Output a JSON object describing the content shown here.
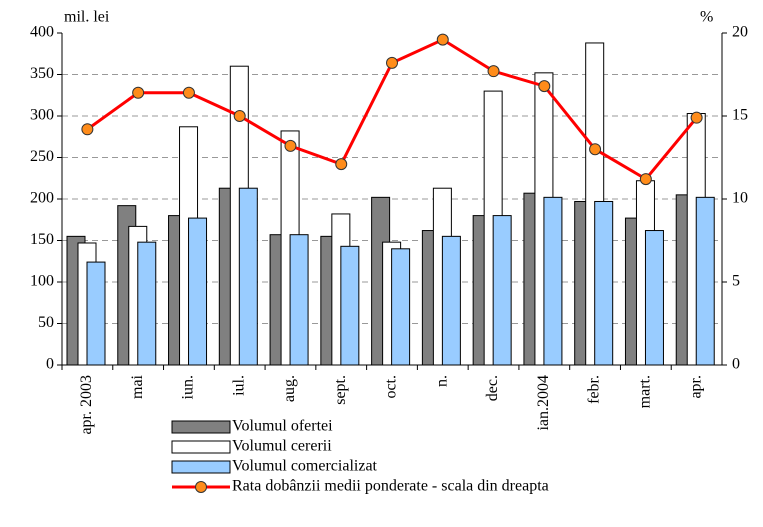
{
  "chart_data": {
    "type": "bar_line",
    "y_label": "mil. lei",
    "y2_label": "%",
    "categories": [
      "apr. 2003",
      "mai",
      "iun.",
      "iul.",
      "aug.",
      "sept.",
      "oct.",
      "n.",
      "dec.",
      "ian.2004",
      "febr.",
      "mart.",
      "apr."
    ],
    "series": [
      {
        "name": "Volumul ofertei",
        "type": "bar",
        "color": "#808080",
        "values": [
          155,
          192,
          180,
          213,
          157,
          155,
          202,
          162,
          180,
          207,
          197,
          177,
          205
        ]
      },
      {
        "name": "Volumul cererii",
        "type": "bar",
        "color": "#ffffff",
        "values": [
          147,
          167,
          287,
          360,
          282,
          182,
          148,
          213,
          330,
          352,
          388,
          222,
          303
        ]
      },
      {
        "name": "Volumul comercializat",
        "type": "bar",
        "color": "#99ccff",
        "values": [
          124,
          148,
          177,
          213,
          157,
          143,
          140,
          155,
          180,
          202,
          197,
          162,
          202
        ]
      },
      {
        "name": "Rata dobânzii medii ponderate  - scala din dreapta",
        "type": "line",
        "axis": "y2",
        "color": "#ff0000",
        "marker_color": "#ff8c1a",
        "values": [
          14.2,
          16.4,
          16.4,
          15.0,
          13.2,
          12.1,
          18.2,
          19.6,
          17.7,
          16.8,
          13.0,
          11.2,
          14.9
        ]
      }
    ],
    "ylim": [
      0,
      400
    ],
    "yticks": [
      0,
      50,
      100,
      150,
      200,
      250,
      300,
      350,
      400
    ],
    "y2lim": [
      0,
      20
    ],
    "y2ticks": [
      0,
      5,
      10,
      15,
      20
    ],
    "grid": true
  }
}
